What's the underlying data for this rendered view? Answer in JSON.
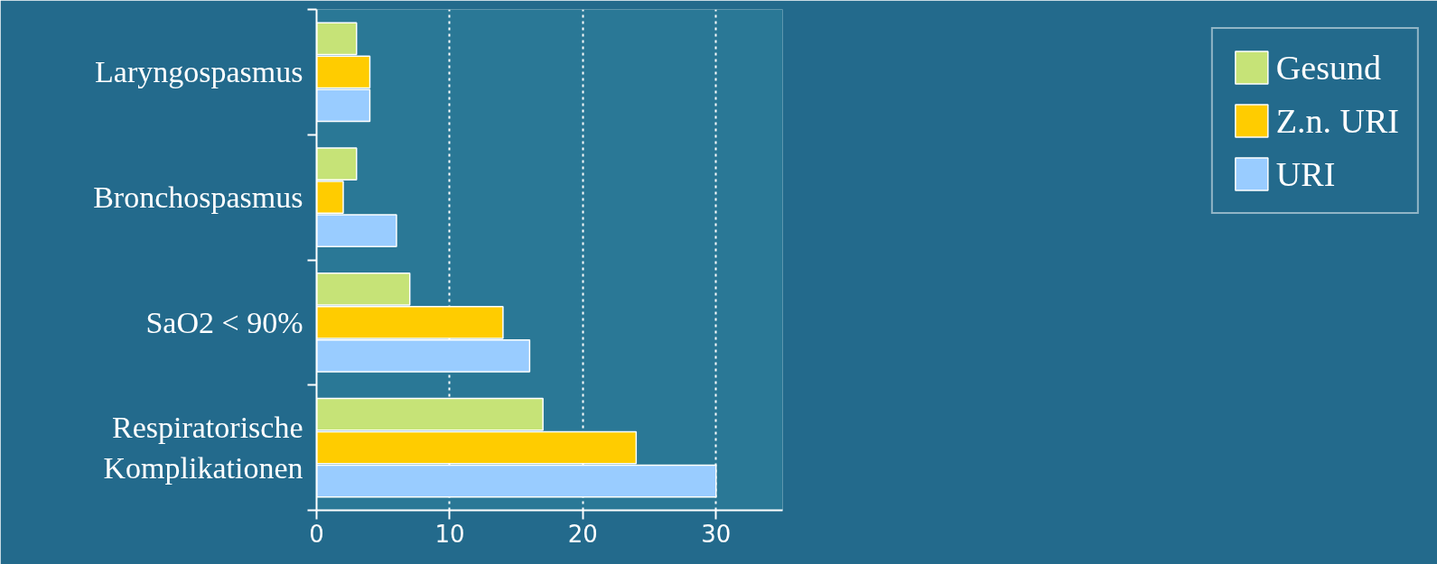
{
  "chart_data": {
    "type": "bar",
    "orientation": "horizontal",
    "categories": [
      "Laryngospasmus",
      "Bronchospasmus",
      "SaO2 < 90%",
      "Respiratorische Komplikationen"
    ],
    "series": [
      {
        "name": "Gesund",
        "color": "#c6e377",
        "values": [
          3,
          3,
          7,
          17
        ]
      },
      {
        "name": "Z.n. URI",
        "color": "#ffcc00",
        "values": [
          4,
          2,
          14,
          24
        ]
      },
      {
        "name": "URI",
        "color": "#99ccff",
        "values": [
          4,
          6,
          16,
          30
        ]
      }
    ],
    "xlim": [
      0,
      35
    ],
    "xticks": [
      0,
      10,
      20,
      30
    ],
    "grid": "x",
    "legend": "right"
  }
}
